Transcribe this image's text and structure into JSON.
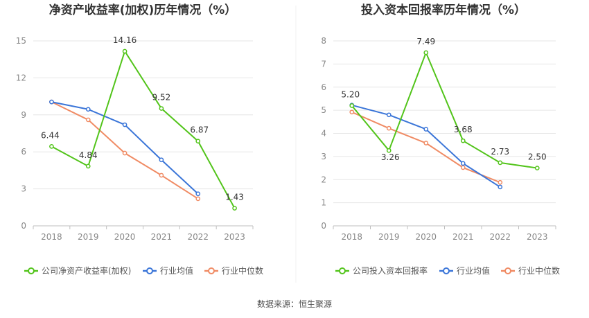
{
  "source": "数据来源：恒生聚源",
  "colors": {
    "company": "#52c41a",
    "avg": "#3a75d8",
    "median": "#f08b64",
    "grid": "#e6e6e6",
    "axis": "#bfbfbf"
  },
  "chart_data": [
    {
      "type": "line",
      "title": "净资产收益率(加权)历年情况（%）",
      "categories": [
        "2018",
        "2019",
        "2020",
        "2021",
        "2022",
        "2023"
      ],
      "ylim": [
        0,
        15
      ],
      "yticks": [
        "0",
        "3",
        "6",
        "9",
        "12",
        "15"
      ],
      "grid": true,
      "legend_position": "bottom",
      "series": [
        {
          "name": "公司净资产收益率(加权)",
          "values": [
            6.44,
            4.84,
            14.16,
            9.52,
            6.87,
            1.43
          ],
          "labels": [
            "6.44",
            "4.84",
            "14.16",
            "9.52",
            "6.87",
            "1.43"
          ]
        },
        {
          "name": "行业均值",
          "values": [
            10.05,
            9.45,
            8.2,
            5.35,
            2.6,
            null
          ]
        },
        {
          "name": "行业中位数",
          "values": [
            10.05,
            8.6,
            5.9,
            4.1,
            2.2,
            null
          ]
        }
      ]
    },
    {
      "type": "line",
      "title": "投入资本回报率历年情况（%）",
      "categories": [
        "2018",
        "2019",
        "2020",
        "2021",
        "2022",
        "2023"
      ],
      "ylim": [
        0,
        8
      ],
      "yticks": [
        "0",
        "1",
        "2",
        "3",
        "4",
        "5",
        "6",
        "7",
        "8"
      ],
      "grid": true,
      "legend_position": "bottom",
      "series": [
        {
          "name": "公司投入资本回报率",
          "values": [
            5.2,
            3.26,
            7.49,
            3.68,
            2.73,
            2.5
          ],
          "labels": [
            "5.20",
            "3.26",
            "7.49",
            "3.68",
            "2.73",
            "2.50"
          ]
        },
        {
          "name": "行业均值",
          "values": [
            5.22,
            4.8,
            4.18,
            2.7,
            1.68,
            null
          ]
        },
        {
          "name": "行业中位数",
          "values": [
            4.92,
            4.22,
            3.58,
            2.52,
            1.88,
            null
          ]
        }
      ]
    }
  ]
}
